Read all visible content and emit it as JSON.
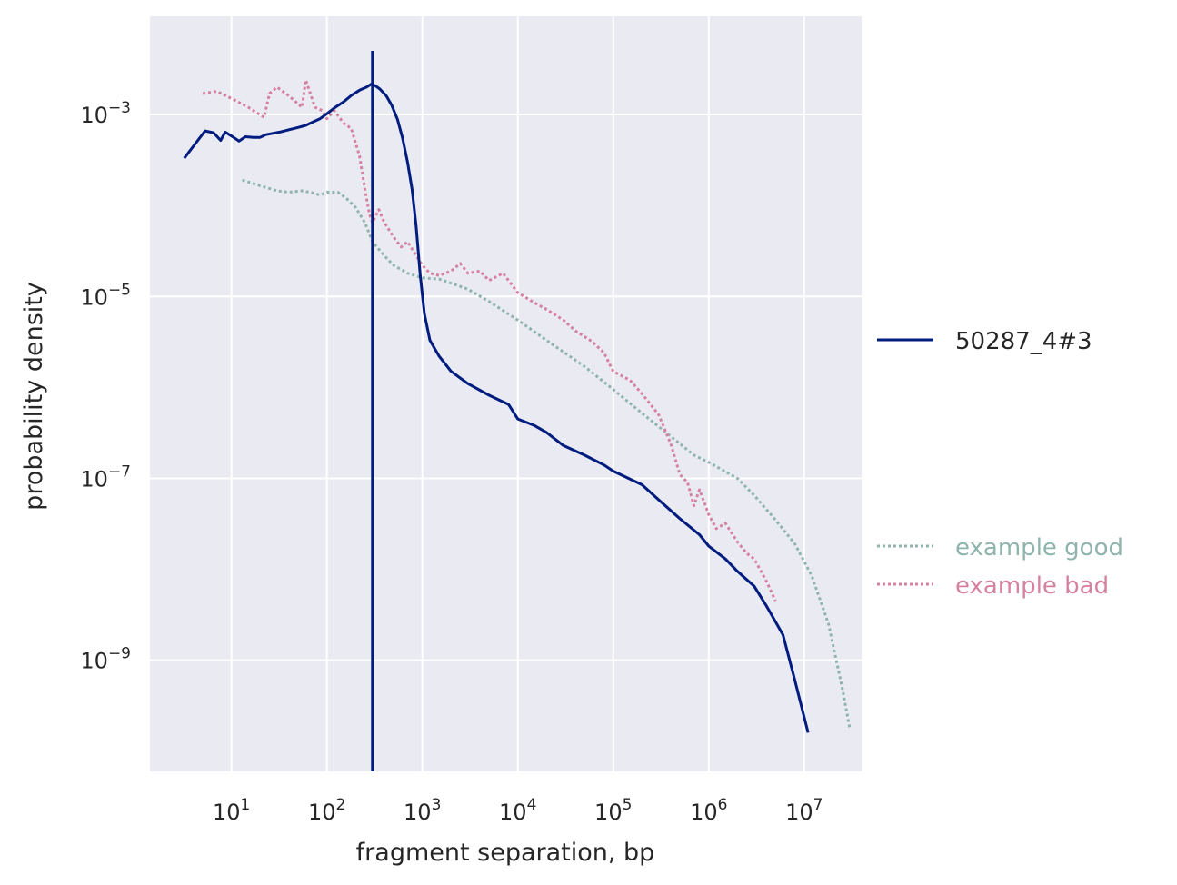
{
  "chart_data": {
    "type": "line",
    "xlabel": "fragment separation, bp",
    "ylabel": "probability density",
    "x_scale": "log",
    "y_scale": "log",
    "xlim": [
      1.4,
      40000000
    ],
    "ylim": [
      6e-11,
      0.012
    ],
    "grid": true,
    "x_ticks": [
      {
        "value": 10,
        "base": "10",
        "exp": "1"
      },
      {
        "value": 100,
        "base": "10",
        "exp": "2"
      },
      {
        "value": 1000,
        "base": "10",
        "exp": "3"
      },
      {
        "value": 10000,
        "base": "10",
        "exp": "4"
      },
      {
        "value": 100000,
        "base": "10",
        "exp": "5"
      },
      {
        "value": 1000000,
        "base": "10",
        "exp": "6"
      },
      {
        "value": 10000000,
        "base": "10",
        "exp": "7"
      }
    ],
    "y_ticks": [
      {
        "value": 0.001,
        "base": "10",
        "exp": "−3"
      },
      {
        "value": 1e-05,
        "base": "10",
        "exp": "−5"
      },
      {
        "value": 1e-07,
        "base": "10",
        "exp": "−7"
      },
      {
        "value": 1e-09,
        "base": "10",
        "exp": "−9"
      }
    ],
    "vline": {
      "x": 300,
      "color": "#001c7f"
    },
    "series": [
      {
        "name": "50287_4#3",
        "color": "#001c7f",
        "style": "solid",
        "points": [
          [
            3.2,
            0.00033
          ],
          [
            4.2,
            0.00048
          ],
          [
            5.3,
            0.00066
          ],
          [
            6.5,
            0.00063
          ],
          [
            7.7,
            0.00052
          ],
          [
            8.6,
            0.00064
          ],
          [
            10,
            0.00058
          ],
          [
            12,
            0.00051
          ],
          [
            14,
            0.00057
          ],
          [
            17,
            0.00056
          ],
          [
            20,
            0.00056
          ],
          [
            23,
            0.0006
          ],
          [
            27,
            0.00062
          ],
          [
            32,
            0.00064
          ],
          [
            40,
            0.00068
          ],
          [
            50,
            0.00072
          ],
          [
            60,
            0.00076
          ],
          [
            70,
            0.00082
          ],
          [
            85,
            0.0009
          ],
          [
            100,
            0.00102
          ],
          [
            120,
            0.00118
          ],
          [
            150,
            0.00138
          ],
          [
            180,
            0.00162
          ],
          [
            220,
            0.00185
          ],
          [
            260,
            0.002
          ],
          [
            290,
            0.00215
          ],
          [
            320,
            0.00208
          ],
          [
            360,
            0.0019
          ],
          [
            420,
            0.0016
          ],
          [
            480,
            0.00125
          ],
          [
            550,
            0.00088
          ],
          [
            620,
            0.00055
          ],
          [
            700,
            0.0003
          ],
          [
            780,
            0.00015
          ],
          [
            860,
            6e-05
          ],
          [
            950,
            1.7e-05
          ],
          [
            1050,
            6.5e-06
          ],
          [
            1200,
            3.3e-06
          ],
          [
            1500,
            2.2e-06
          ],
          [
            2000,
            1.5e-06
          ],
          [
            3000,
            1.1e-06
          ],
          [
            5000,
            8.2e-07
          ],
          [
            8000,
            6.5e-07
          ],
          [
            10000,
            4.5e-07
          ],
          [
            15000,
            3.8e-07
          ],
          [
            20000,
            3.2e-07
          ],
          [
            30000,
            2.3e-07
          ],
          [
            50000,
            1.8e-07
          ],
          [
            80000,
            1.4e-07
          ],
          [
            100000,
            1.2e-07
          ],
          [
            200000,
            8.5e-08
          ],
          [
            300000,
            5.8e-08
          ],
          [
            500000,
            3.6e-08
          ],
          [
            800000,
            2.4e-08
          ],
          [
            1000000,
            1.8e-08
          ],
          [
            1500000,
            1.3e-08
          ],
          [
            2000000,
            9.5e-09
          ],
          [
            3000000,
            6.5e-09
          ],
          [
            4000000,
            4e-09
          ],
          [
            6000000,
            1.9e-09
          ],
          [
            8000000,
            6e-10
          ],
          [
            11000000,
            1.6e-10
          ]
        ]
      },
      {
        "name": "example good",
        "color": "#8fb4ad",
        "style": "dotted",
        "points": [
          [
            13,
            0.00019
          ],
          [
            20,
            0.000165
          ],
          [
            30,
            0.000145
          ],
          [
            40,
            0.00014
          ],
          [
            55,
            0.000145
          ],
          [
            70,
            0.000138
          ],
          [
            85,
            0.00013
          ],
          [
            100,
            0.00014
          ],
          [
            130,
            0.00014
          ],
          [
            160,
            0.00012
          ],
          [
            200,
            9.5e-05
          ],
          [
            250,
            6.5e-05
          ],
          [
            300,
            4e-05
          ],
          [
            400,
            2.8e-05
          ],
          [
            500,
            2.2e-05
          ],
          [
            700,
            1.8e-05
          ],
          [
            1000,
            1.6e-05
          ],
          [
            1500,
            1.55e-05
          ],
          [
            2000,
            1.4e-05
          ],
          [
            3000,
            1.2e-05
          ],
          [
            5000,
            8.8e-06
          ],
          [
            10000,
            5.5e-06
          ],
          [
            20000,
            3.3e-06
          ],
          [
            50000,
            1.7e-06
          ],
          [
            100000,
            9.5e-07
          ],
          [
            200000,
            5.2e-07
          ],
          [
            400000,
            2.9e-07
          ],
          [
            700000,
            1.8e-07
          ],
          [
            1000000,
            1.5e-07
          ],
          [
            2000000,
            1e-07
          ],
          [
            3000000,
            6.5e-08
          ],
          [
            5000000,
            3.5e-08
          ],
          [
            8000000,
            1.9e-08
          ],
          [
            12000000,
            8.5e-09
          ],
          [
            18000000,
            2.5e-09
          ],
          [
            25000000,
            5e-10
          ],
          [
            30000000,
            1.8e-10
          ]
        ]
      },
      {
        "name": "example bad",
        "color": "#d5819f",
        "style": "dotted",
        "points": [
          [
            5,
            0.0017
          ],
          [
            7,
            0.0018
          ],
          [
            10,
            0.0015
          ],
          [
            15,
            0.0012
          ],
          [
            22,
            0.00093
          ],
          [
            25,
            0.0017
          ],
          [
            30,
            0.002
          ],
          [
            40,
            0.0016
          ],
          [
            55,
            0.0012
          ],
          [
            60,
            0.0024
          ],
          [
            75,
            0.0012
          ],
          [
            90,
            0.0011
          ],
          [
            100,
            0.0009
          ],
          [
            120,
            0.0011
          ],
          [
            150,
            0.0008
          ],
          [
            180,
            0.0007
          ],
          [
            220,
            0.00035
          ],
          [
            250,
            0.00015
          ],
          [
            280,
            8e-05
          ],
          [
            300,
            6.5e-05
          ],
          [
            350,
            9e-05
          ],
          [
            400,
            6.5e-05
          ],
          [
            500,
            4.5e-05
          ],
          [
            600,
            3.5e-05
          ],
          [
            700,
            4e-05
          ],
          [
            800,
            3.2e-05
          ],
          [
            1000,
            2.2e-05
          ],
          [
            1200,
            1.8e-05
          ],
          [
            1500,
            1.7e-05
          ],
          [
            2000,
            1.9e-05
          ],
          [
            2500,
            2.3e-05
          ],
          [
            3000,
            1.8e-05
          ],
          [
            4000,
            1.9e-05
          ],
          [
            5000,
            1.5e-05
          ],
          [
            7000,
            1.8e-05
          ],
          [
            10000,
            1.1e-05
          ],
          [
            15000,
            8.5e-06
          ],
          [
            20000,
            7.2e-06
          ],
          [
            30000,
            5.5e-06
          ],
          [
            40000,
            4.2e-06
          ],
          [
            60000,
            3.2e-06
          ],
          [
            80000,
            2.4e-06
          ],
          [
            100000,
            1.5e-06
          ],
          [
            150000,
            1.2e-06
          ],
          [
            200000,
            8.5e-07
          ],
          [
            300000,
            5e-07
          ],
          [
            400000,
            2.4e-07
          ],
          [
            500000,
            1.1e-07
          ],
          [
            600000,
            9e-08
          ],
          [
            700000,
            5e-08
          ],
          [
            800000,
            7.5e-08
          ],
          [
            1000000,
            4e-08
          ],
          [
            1200000,
            2.8e-08
          ],
          [
            1500000,
            3.2e-08
          ],
          [
            2000000,
            2e-08
          ],
          [
            2500000,
            1.5e-08
          ],
          [
            3000000,
            1.3e-08
          ],
          [
            4000000,
            7.5e-09
          ],
          [
            5000000,
            4.5e-09
          ]
        ]
      }
    ]
  }
}
